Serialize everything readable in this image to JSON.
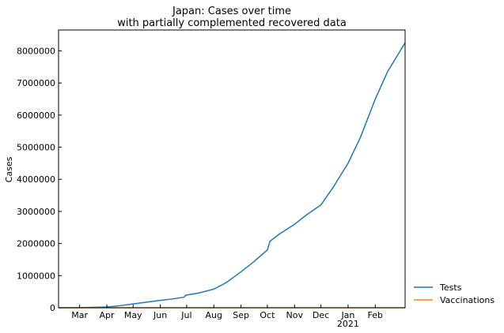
{
  "chart_data": {
    "type": "line",
    "title_line1": "Japan: Cases over time",
    "title_line2": "with partially complemented recovered data",
    "xlabel": "",
    "ylabel": "Cases",
    "x_range": [
      "2020-02-06",
      "2021-03-07"
    ],
    "xlim": [
      "2020-02-06",
      "2021-03-07"
    ],
    "ylim": [
      0,
      8650000
    ],
    "yticks": [
      0,
      1000000,
      2000000,
      3000000,
      4000000,
      5000000,
      6000000,
      7000000,
      8000000
    ],
    "ytick_labels": [
      "0",
      "1000000",
      "2000000",
      "3000000",
      "4000000",
      "5000000",
      "6000000",
      "7000000",
      "8000000"
    ],
    "xticks": [
      {
        "date": "2020-03-01",
        "label": "Mar"
      },
      {
        "date": "2020-04-01",
        "label": "Apr"
      },
      {
        "date": "2020-05-01",
        "label": "May"
      },
      {
        "date": "2020-06-01",
        "label": "Jun"
      },
      {
        "date": "2020-07-01",
        "label": "Jul"
      },
      {
        "date": "2020-08-01",
        "label": "Aug"
      },
      {
        "date": "2020-09-01",
        "label": "Sep"
      },
      {
        "date": "2020-10-01",
        "label": "Oct"
      },
      {
        "date": "2020-11-01",
        "label": "Nov"
      },
      {
        "date": "2020-12-01",
        "label": "Dec"
      },
      {
        "date": "2021-01-01",
        "label": "Jan",
        "sublabel": "2021"
      },
      {
        "date": "2021-02-01",
        "label": "Feb"
      }
    ],
    "grid": false,
    "legend_position": "outside-right-bottom",
    "series": [
      {
        "name": "Tests",
        "color": "#1f77b4",
        "points": [
          [
            "2020-02-06",
            0
          ],
          [
            "2020-03-01",
            2000
          ],
          [
            "2020-03-20",
            15000
          ],
          [
            "2020-04-01",
            25000
          ],
          [
            "2020-04-15",
            60000
          ],
          [
            "2020-05-01",
            120000
          ],
          [
            "2020-05-15",
            170000
          ],
          [
            "2020-06-01",
            230000
          ],
          [
            "2020-06-15",
            275000
          ],
          [
            "2020-06-28",
            330000
          ],
          [
            "2020-06-30",
            390000
          ],
          [
            "2020-07-15",
            460000
          ],
          [
            "2020-08-01",
            580000
          ],
          [
            "2020-08-15",
            780000
          ],
          [
            "2020-09-01",
            1120000
          ],
          [
            "2020-09-15",
            1420000
          ],
          [
            "2020-10-01",
            1800000
          ],
          [
            "2020-10-03",
            1980000
          ],
          [
            "2020-10-04",
            2070000
          ],
          [
            "2020-10-15",
            2300000
          ],
          [
            "2020-11-01",
            2600000
          ],
          [
            "2020-11-15",
            2900000
          ],
          [
            "2020-12-01",
            3200000
          ],
          [
            "2020-12-15",
            3750000
          ],
          [
            "2021-01-01",
            4500000
          ],
          [
            "2021-01-15",
            5300000
          ],
          [
            "2021-02-01",
            6500000
          ],
          [
            "2021-02-15",
            7350000
          ],
          [
            "2021-03-07",
            8250000
          ]
        ]
      },
      {
        "name": "Vaccinations",
        "color": "#ff7f0e",
        "points": [
          [
            "2020-02-06",
            0
          ],
          [
            "2021-03-07",
            0
          ]
        ]
      }
    ]
  }
}
